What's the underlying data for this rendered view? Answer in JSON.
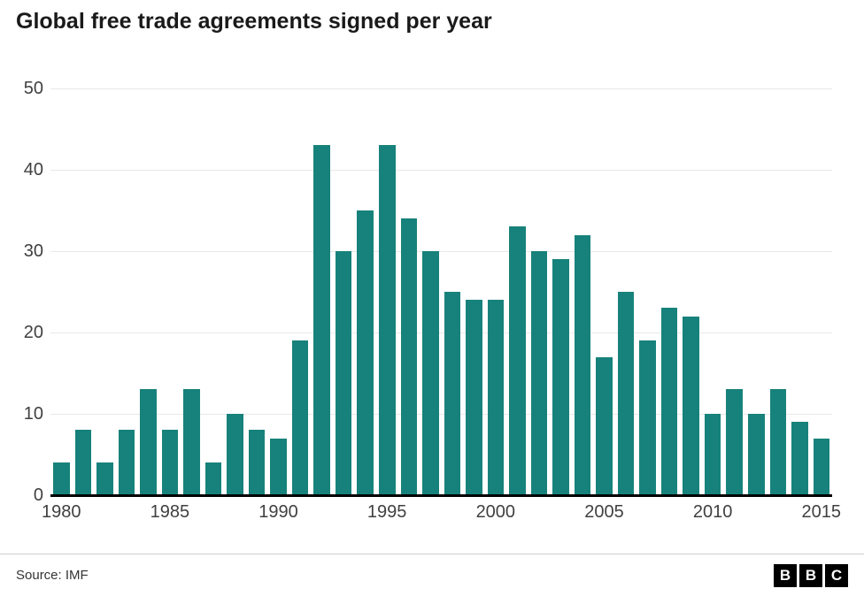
{
  "chart": {
    "title": "Global free trade agreements signed per year"
  },
  "chart_data": {
    "type": "bar",
    "title": "Global free trade agreements signed per year",
    "x": [
      1980,
      1981,
      1982,
      1983,
      1984,
      1985,
      1986,
      1987,
      1988,
      1989,
      1990,
      1991,
      1992,
      1993,
      1994,
      1995,
      1996,
      1997,
      1998,
      1999,
      2000,
      2001,
      2002,
      2003,
      2004,
      2005,
      2006,
      2007,
      2008,
      2009,
      2010,
      2011,
      2012,
      2013,
      2014,
      2015
    ],
    "values": [
      4,
      8,
      4,
      8,
      13,
      8,
      13,
      4,
      10,
      8,
      7,
      19,
      43,
      30,
      35,
      43,
      34,
      30,
      25,
      24,
      24,
      33,
      30,
      29,
      32,
      17,
      25,
      19,
      23,
      22,
      10,
      13,
      10,
      13,
      9,
      7
    ],
    "xlabel": "",
    "ylabel": "",
    "ylim": [
      0,
      50
    ],
    "yticks": [
      0,
      10,
      20,
      30,
      40,
      50
    ],
    "xticks": [
      1980,
      1985,
      1990,
      1995,
      2000,
      2005,
      2010,
      2015
    ],
    "bar_color": "#17827b",
    "grid": true,
    "legend": false
  },
  "footer": {
    "source": "Source: IMF",
    "logo_letters": [
      "B",
      "B",
      "C"
    ]
  }
}
